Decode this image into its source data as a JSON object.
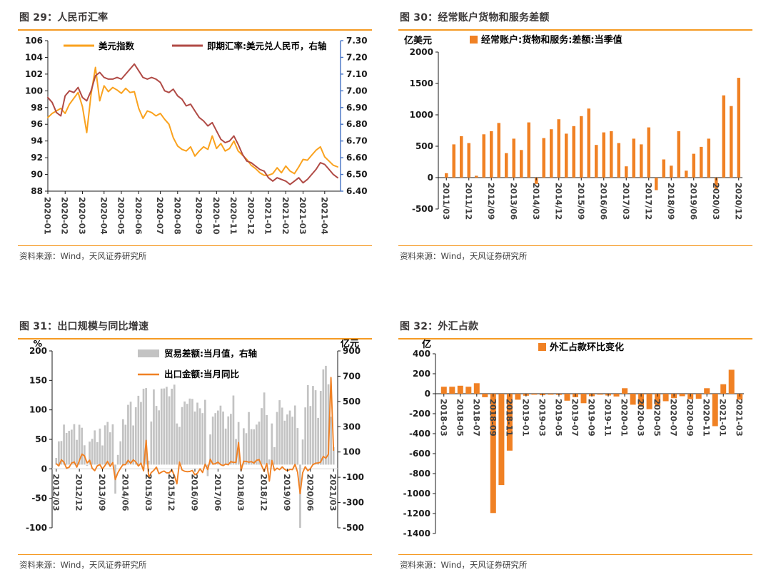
{
  "colors": {
    "accent_orange": "#f59a23",
    "bar_orange": "#f08124",
    "line_gold": "#faa21e",
    "line_red": "#b04a45",
    "axis_blue": "#4472c4",
    "bar_gray": "#c3c3c3",
    "zero_line_gray": "#d9d9d9",
    "axis_black": "#1a1a1a",
    "ytick_text": "#1a1a1a",
    "xtick_text": "#404040",
    "legend_text": "#000000"
  },
  "chart_data": [
    {
      "type": "line",
      "title": "图 29：人民币汇率",
      "source": "资料来源：Wind，天风证券研究所",
      "left_axis": {
        "min": 88,
        "max": 106,
        "step": 2
      },
      "right_axis": {
        "min": 6.4,
        "max": 7.3,
        "step": 0.1,
        "decimals": 2
      },
      "x_tick_labels": [
        "2020-01",
        "2020-02",
        "2020-03",
        "2020-04",
        "2020-05",
        "2020-06",
        "2020-07",
        "2020-08",
        "2020-09",
        "2020-10",
        "2020-11",
        "2020-12",
        "2021-01",
        "2021-02",
        "2021-03",
        "2021-04"
      ],
      "x_tick_indices": [
        0,
        4,
        8,
        13,
        17,
        21,
        26,
        30,
        35,
        39,
        43,
        47,
        51,
        55,
        59,
        64
      ],
      "legend_position": "top-inside",
      "grid": false,
      "series": [
        {
          "name": "美元指数",
          "axis": "left",
          "color": "#faa21e",
          "values": [
            96.8,
            97.3,
            97.6,
            97.9,
            97.3,
            98.4,
            99.1,
            99.8,
            98.1,
            95.0,
            99.6,
            102.8,
            98.8,
            100.6,
            99.9,
            100.4,
            100.1,
            99.7,
            100.3,
            99.8,
            99.9,
            97.9,
            96.7,
            97.6,
            97.4,
            97.0,
            97.3,
            96.6,
            96.0,
            94.4,
            93.4,
            93.0,
            92.8,
            93.3,
            92.2,
            92.8,
            93.3,
            93.0,
            94.6,
            93.1,
            93.7,
            92.8,
            93.1,
            94.0,
            92.8,
            92.3,
            91.8,
            91.1,
            90.7,
            90.2,
            89.9,
            89.9,
            90.1,
            90.8,
            90.2,
            91.0,
            90.4,
            90.1,
            90.9,
            91.8,
            91.7,
            92.3,
            92.9,
            93.3,
            92.1,
            91.6,
            91.1,
            90.9
          ]
        },
        {
          "name": "即期汇率:美元兑人民币，右轴",
          "axis": "right",
          "color": "#b04a45",
          "values": [
            6.96,
            6.93,
            6.87,
            6.85,
            6.97,
            7.0,
            6.99,
            7.02,
            6.96,
            6.94,
            7.0,
            7.09,
            7.11,
            7.08,
            7.07,
            7.07,
            7.08,
            7.07,
            7.1,
            7.13,
            7.16,
            7.12,
            7.08,
            7.07,
            7.08,
            7.07,
            7.05,
            7.0,
            6.99,
            7.01,
            6.97,
            6.95,
            6.91,
            6.92,
            6.88,
            6.84,
            6.82,
            6.79,
            6.81,
            6.76,
            6.71,
            6.69,
            6.7,
            6.73,
            6.68,
            6.62,
            6.58,
            6.57,
            6.55,
            6.53,
            6.52,
            6.48,
            6.46,
            6.48,
            6.47,
            6.46,
            6.44,
            6.46,
            6.48,
            6.45,
            6.47,
            6.5,
            6.53,
            6.57,
            6.56,
            6.53,
            6.5,
            6.48
          ]
        }
      ]
    },
    {
      "type": "bar",
      "title": "图 30：经常账户货物和服务差额",
      "source": "资料来源：Wind，天风证券研究所",
      "unit_label": "亿美元",
      "legend": "经常账户:货物和服务:差额:当季值",
      "bar_color": "#f08124",
      "axis": {
        "min": -500,
        "max": 2000,
        "step": 500
      },
      "categories_count": 40,
      "x_tick_step": 3,
      "x_tick_labels": [
        "2011/03",
        "2011/12",
        "2012/09",
        "2013/06",
        "2014/03",
        "2014/12",
        "2015/09",
        "2016/06",
        "2017/03",
        "2017/12",
        "2018/09",
        "2019/06",
        "2020/03",
        "2020/12"
      ],
      "values": [
        70,
        530,
        660,
        550,
        30,
        690,
        740,
        870,
        390,
        620,
        440,
        880,
        -100,
        630,
        770,
        930,
        700,
        820,
        980,
        1100,
        520,
        720,
        740,
        550,
        180,
        620,
        530,
        800,
        -200,
        290,
        190,
        740,
        110,
        380,
        490,
        620,
        -200,
        1310,
        1140,
        1590
      ]
    },
    {
      "type": "bar-line",
      "title": "图 31：出口规模与同比增速",
      "source": "资料来源：Wind，天风证券研究所",
      "left_axis": {
        "min": -100,
        "max": 200,
        "step": 50,
        "unit": "%"
      },
      "right_axis": {
        "min": -500,
        "max": 900,
        "step": 200,
        "unit": "亿元"
      },
      "categories_count": 109,
      "x_tick_step": 9,
      "x_tick_labels": [
        "2012/03",
        "2012/12",
        "2013/09",
        "2014/06",
        "2015/03",
        "2015/12",
        "2016/09",
        "2017/06",
        "2018/03",
        "2018/12",
        "2019/09",
        "2020/06",
        "2021/03"
      ],
      "bars": {
        "name": "贸易差额:当月值，右轴",
        "axis": "right",
        "color": "#c3c3c3",
        "values": [
          53,
          184,
          187,
          317,
          251,
          267,
          277,
          320,
          196,
          316,
          292,
          153,
          -10,
          182,
          204,
          271,
          178,
          285,
          152,
          311,
          338,
          256,
          319,
          -230,
          77,
          185,
          359,
          316,
          473,
          498,
          310,
          454,
          545,
          496,
          600,
          606,
          31,
          341,
          595,
          465,
          430,
          602,
          603,
          616,
          541,
          601,
          633,
          326,
          299,
          456,
          500,
          481,
          523,
          520,
          420,
          491,
          446,
          408,
          513,
          -91,
          239,
          380,
          408,
          428,
          467,
          420,
          285,
          382,
          402,
          547,
          203,
          337,
          -50,
          288,
          249,
          416,
          281,
          279,
          317,
          340,
          447,
          571,
          392,
          41,
          326,
          138,
          417,
          510,
          451,
          348,
          397,
          428,
          379,
          468,
          290,
          -500,
          199,
          453,
          629,
          464,
          623,
          589,
          370,
          584,
          754,
          782,
          636,
          379,
          138
        ]
      },
      "line": {
        "name": "出口金额:当月同比",
        "axis": "left",
        "color": "#f08124",
        "values": [
          8.9,
          4.9,
          15.3,
          11.3,
          1.0,
          2.7,
          9.9,
          11.6,
          2.9,
          14.1,
          25.0,
          21.8,
          10.0,
          14.7,
          1.0,
          -3.1,
          5.1,
          7.2,
          -0.3,
          5.6,
          12.7,
          4.3,
          10.6,
          -18.1,
          -6.6,
          0.9,
          7.0,
          7.2,
          14.5,
          9.4,
          15.3,
          11.6,
          4.7,
          9.7,
          -3.3,
          48.3,
          -15.0,
          -6.4,
          -2.5,
          2.8,
          -8.3,
          -5.5,
          -3.7,
          -6.9,
          -6.8,
          -1.4,
          -11.2,
          -25.4,
          11.5,
          -1.8,
          -4.1,
          -4.8,
          -4.4,
          -2.8,
          -10.0,
          -7.3,
          0.1,
          -6.1,
          7.9,
          -1.3,
          16.4,
          8.0,
          8.7,
          11.3,
          7.2,
          5.5,
          8.1,
          6.9,
          12.3,
          10.9,
          11.1,
          44.5,
          -2.7,
          12.9,
          12.6,
          11.3,
          12.2,
          9.8,
          14.5,
          15.6,
          5.4,
          -4.4,
          9.1,
          -20.8,
          14.2,
          -2.7,
          1.1,
          -1.3,
          3.3,
          -1.0,
          -3.2,
          -0.9,
          -1.3,
          7.6,
          -6.0,
          -42.0,
          -6.6,
          3.5,
          -3.3,
          0.5,
          7.2,
          9.5,
          9.9,
          11.4,
          21.1,
          18.1,
          24.8,
          154.9,
          30.6
        ]
      }
    },
    {
      "type": "bar",
      "title": "图 32：外汇占款",
      "source": "资料来源：Wind，天风证券研究所",
      "unit_label": "亿",
      "legend": "外汇占款环比变化",
      "bar_color": "#f08124",
      "axis": {
        "min": -1400,
        "max": 400,
        "step": 200
      },
      "categories_count": 37,
      "x_tick_step": 2,
      "x_tick_labels": [
        "2018-03",
        "2018-05",
        "2018-07",
        "2018-09",
        "2018-11",
        "2019-01",
        "2019-03",
        "2019-05",
        "2019-07",
        "2019-09",
        "2019-11",
        "2020-01",
        "2020-03",
        "2020-05",
        "2020-07",
        "2020-09",
        "2020-11",
        "2021-01",
        "2021-03"
      ],
      "values": [
        70,
        70,
        80,
        70,
        105,
        -35,
        -1195,
        -915,
        -570,
        -60,
        -20,
        -10,
        -15,
        -10,
        -12,
        -70,
        -35,
        -95,
        -25,
        -10,
        -18,
        -28,
        55,
        -110,
        -130,
        -155,
        -120,
        -75,
        -45,
        -25,
        -55,
        -50,
        55,
        -325,
        95,
        240,
        -60
      ]
    }
  ]
}
